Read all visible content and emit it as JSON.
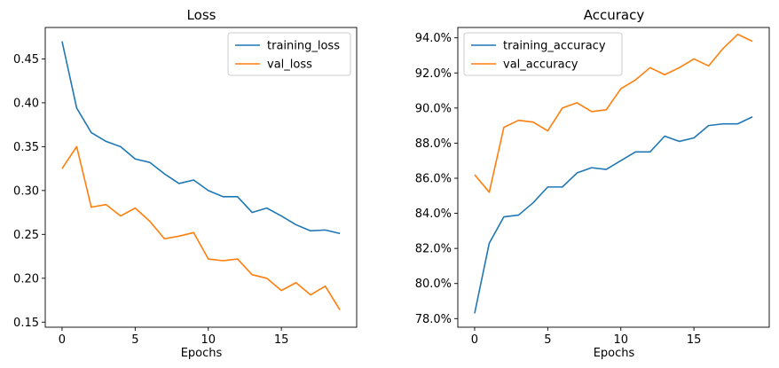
{
  "colors": {
    "training": "#1f77b4",
    "validation": "#ff7f0e"
  },
  "chart_data": [
    {
      "type": "line",
      "title": "Loss",
      "xlabel": "Epochs",
      "ylabel": "",
      "x": [
        0,
        1,
        2,
        3,
        4,
        5,
        6,
        7,
        8,
        9,
        10,
        11,
        12,
        13,
        14,
        15,
        16,
        17,
        18,
        19
      ],
      "xlim": [
        -1.15,
        20.15
      ],
      "xticks": [
        0,
        5,
        10,
        15
      ],
      "xtick_labels": [
        "0",
        "5",
        "10",
        "15"
      ],
      "ylim": [
        0.1442,
        0.4858
      ],
      "yticks": [
        0.15,
        0.2,
        0.25,
        0.3,
        0.35,
        0.4,
        0.45
      ],
      "ytick_labels": [
        "0.15",
        "0.20",
        "0.25",
        "0.30",
        "0.35",
        "0.40",
        "0.45"
      ],
      "legend_position": "top-right",
      "series": [
        {
          "name": "training_loss",
          "color": "#1f77b4",
          "values": [
            0.47,
            0.394,
            0.366,
            0.356,
            0.35,
            0.336,
            0.332,
            0.319,
            0.308,
            0.312,
            0.3,
            0.293,
            0.293,
            0.275,
            0.28,
            0.271,
            0.261,
            0.254,
            0.255,
            0.251
          ]
        },
        {
          "name": "val_loss",
          "color": "#ff7f0e",
          "values": [
            0.325,
            0.35,
            0.281,
            0.284,
            0.271,
            0.28,
            0.265,
            0.245,
            0.248,
            0.252,
            0.222,
            0.22,
            0.222,
            0.204,
            0.2,
            0.186,
            0.195,
            0.181,
            0.191,
            0.164
          ]
        }
      ]
    },
    {
      "type": "line",
      "title": "Accuracy",
      "xlabel": "Epochs",
      "ylabel": "",
      "x": [
        0,
        1,
        2,
        3,
        4,
        5,
        6,
        7,
        8,
        9,
        10,
        11,
        12,
        13,
        14,
        15,
        16,
        17,
        18,
        19
      ],
      "xlim": [
        -1.15,
        20.15
      ],
      "xticks": [
        0,
        5,
        10,
        15
      ],
      "xtick_labels": [
        "0",
        "5",
        "10",
        "15"
      ],
      "ylim": [
        0.7751,
        0.9459
      ],
      "yticks": [
        0.78,
        0.8,
        0.82,
        0.84,
        0.86,
        0.88,
        0.9,
        0.92,
        0.94
      ],
      "ytick_labels": [
        "78.0%",
        "80.0%",
        "82.0%",
        "84.0%",
        "86.0%",
        "88.0%",
        "90.0%",
        "92.0%",
        "94.0%"
      ],
      "legend_position": "top-left",
      "series": [
        {
          "name": "training_accuracy",
          "color": "#1f77b4",
          "values": [
            0.783,
            0.823,
            0.838,
            0.839,
            0.846,
            0.855,
            0.855,
            0.863,
            0.866,
            0.865,
            0.87,
            0.875,
            0.875,
            0.884,
            0.881,
            0.883,
            0.89,
            0.891,
            0.891,
            0.895
          ]
        },
        {
          "name": "val_accuracy",
          "color": "#ff7f0e",
          "values": [
            0.862,
            0.852,
            0.889,
            0.893,
            0.892,
            0.887,
            0.9,
            0.903,
            0.898,
            0.899,
            0.911,
            0.916,
            0.923,
            0.919,
            0.923,
            0.928,
            0.924,
            0.934,
            0.942,
            0.938
          ]
        }
      ]
    }
  ]
}
